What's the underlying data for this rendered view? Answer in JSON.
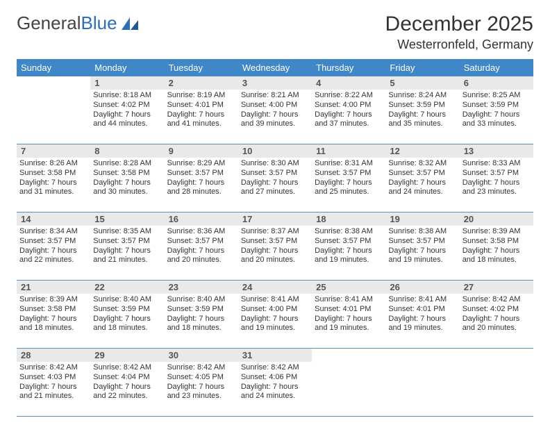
{
  "logo": {
    "text1": "General",
    "text2": "Blue"
  },
  "title": "December 2025",
  "location": "Westerronfeld, Germany",
  "colors": {
    "header_bg": "#3f87c7",
    "header_text": "#ffffff",
    "daylabel_bg": "#e9e9e9",
    "row_border": "#5b8fc2",
    "logo_gray": "#444444",
    "logo_blue": "#2d6fb6"
  },
  "weekdays": [
    "Sunday",
    "Monday",
    "Tuesday",
    "Wednesday",
    "Thursday",
    "Friday",
    "Saturday"
  ],
  "weeks": [
    [
      null,
      {
        "n": "1",
        "sr": "Sunrise: 8:18 AM",
        "ss": "Sunset: 4:02 PM",
        "d1": "Daylight: 7 hours",
        "d2": "and 44 minutes."
      },
      {
        "n": "2",
        "sr": "Sunrise: 8:19 AM",
        "ss": "Sunset: 4:01 PM",
        "d1": "Daylight: 7 hours",
        "d2": "and 41 minutes."
      },
      {
        "n": "3",
        "sr": "Sunrise: 8:21 AM",
        "ss": "Sunset: 4:00 PM",
        "d1": "Daylight: 7 hours",
        "d2": "and 39 minutes."
      },
      {
        "n": "4",
        "sr": "Sunrise: 8:22 AM",
        "ss": "Sunset: 4:00 PM",
        "d1": "Daylight: 7 hours",
        "d2": "and 37 minutes."
      },
      {
        "n": "5",
        "sr": "Sunrise: 8:24 AM",
        "ss": "Sunset: 3:59 PM",
        "d1": "Daylight: 7 hours",
        "d2": "and 35 minutes."
      },
      {
        "n": "6",
        "sr": "Sunrise: 8:25 AM",
        "ss": "Sunset: 3:59 PM",
        "d1": "Daylight: 7 hours",
        "d2": "and 33 minutes."
      }
    ],
    [
      {
        "n": "7",
        "sr": "Sunrise: 8:26 AM",
        "ss": "Sunset: 3:58 PM",
        "d1": "Daylight: 7 hours",
        "d2": "and 31 minutes."
      },
      {
        "n": "8",
        "sr": "Sunrise: 8:28 AM",
        "ss": "Sunset: 3:58 PM",
        "d1": "Daylight: 7 hours",
        "d2": "and 30 minutes."
      },
      {
        "n": "9",
        "sr": "Sunrise: 8:29 AM",
        "ss": "Sunset: 3:57 PM",
        "d1": "Daylight: 7 hours",
        "d2": "and 28 minutes."
      },
      {
        "n": "10",
        "sr": "Sunrise: 8:30 AM",
        "ss": "Sunset: 3:57 PM",
        "d1": "Daylight: 7 hours",
        "d2": "and 27 minutes."
      },
      {
        "n": "11",
        "sr": "Sunrise: 8:31 AM",
        "ss": "Sunset: 3:57 PM",
        "d1": "Daylight: 7 hours",
        "d2": "and 25 minutes."
      },
      {
        "n": "12",
        "sr": "Sunrise: 8:32 AM",
        "ss": "Sunset: 3:57 PM",
        "d1": "Daylight: 7 hours",
        "d2": "and 24 minutes."
      },
      {
        "n": "13",
        "sr": "Sunrise: 8:33 AM",
        "ss": "Sunset: 3:57 PM",
        "d1": "Daylight: 7 hours",
        "d2": "and 23 minutes."
      }
    ],
    [
      {
        "n": "14",
        "sr": "Sunrise: 8:34 AM",
        "ss": "Sunset: 3:57 PM",
        "d1": "Daylight: 7 hours",
        "d2": "and 22 minutes."
      },
      {
        "n": "15",
        "sr": "Sunrise: 8:35 AM",
        "ss": "Sunset: 3:57 PM",
        "d1": "Daylight: 7 hours",
        "d2": "and 21 minutes."
      },
      {
        "n": "16",
        "sr": "Sunrise: 8:36 AM",
        "ss": "Sunset: 3:57 PM",
        "d1": "Daylight: 7 hours",
        "d2": "and 20 minutes."
      },
      {
        "n": "17",
        "sr": "Sunrise: 8:37 AM",
        "ss": "Sunset: 3:57 PM",
        "d1": "Daylight: 7 hours",
        "d2": "and 20 minutes."
      },
      {
        "n": "18",
        "sr": "Sunrise: 8:38 AM",
        "ss": "Sunset: 3:57 PM",
        "d1": "Daylight: 7 hours",
        "d2": "and 19 minutes."
      },
      {
        "n": "19",
        "sr": "Sunrise: 8:38 AM",
        "ss": "Sunset: 3:57 PM",
        "d1": "Daylight: 7 hours",
        "d2": "and 19 minutes."
      },
      {
        "n": "20",
        "sr": "Sunrise: 8:39 AM",
        "ss": "Sunset: 3:58 PM",
        "d1": "Daylight: 7 hours",
        "d2": "and 18 minutes."
      }
    ],
    [
      {
        "n": "21",
        "sr": "Sunrise: 8:39 AM",
        "ss": "Sunset: 3:58 PM",
        "d1": "Daylight: 7 hours",
        "d2": "and 18 minutes."
      },
      {
        "n": "22",
        "sr": "Sunrise: 8:40 AM",
        "ss": "Sunset: 3:59 PM",
        "d1": "Daylight: 7 hours",
        "d2": "and 18 minutes."
      },
      {
        "n": "23",
        "sr": "Sunrise: 8:40 AM",
        "ss": "Sunset: 3:59 PM",
        "d1": "Daylight: 7 hours",
        "d2": "and 18 minutes."
      },
      {
        "n": "24",
        "sr": "Sunrise: 8:41 AM",
        "ss": "Sunset: 4:00 PM",
        "d1": "Daylight: 7 hours",
        "d2": "and 19 minutes."
      },
      {
        "n": "25",
        "sr": "Sunrise: 8:41 AM",
        "ss": "Sunset: 4:01 PM",
        "d1": "Daylight: 7 hours",
        "d2": "and 19 minutes."
      },
      {
        "n": "26",
        "sr": "Sunrise: 8:41 AM",
        "ss": "Sunset: 4:01 PM",
        "d1": "Daylight: 7 hours",
        "d2": "and 19 minutes."
      },
      {
        "n": "27",
        "sr": "Sunrise: 8:42 AM",
        "ss": "Sunset: 4:02 PM",
        "d1": "Daylight: 7 hours",
        "d2": "and 20 minutes."
      }
    ],
    [
      {
        "n": "28",
        "sr": "Sunrise: 8:42 AM",
        "ss": "Sunset: 4:03 PM",
        "d1": "Daylight: 7 hours",
        "d2": "and 21 minutes."
      },
      {
        "n": "29",
        "sr": "Sunrise: 8:42 AM",
        "ss": "Sunset: 4:04 PM",
        "d1": "Daylight: 7 hours",
        "d2": "and 22 minutes."
      },
      {
        "n": "30",
        "sr": "Sunrise: 8:42 AM",
        "ss": "Sunset: 4:05 PM",
        "d1": "Daylight: 7 hours",
        "d2": "and 23 minutes."
      },
      {
        "n": "31",
        "sr": "Sunrise: 8:42 AM",
        "ss": "Sunset: 4:06 PM",
        "d1": "Daylight: 7 hours",
        "d2": "and 24 minutes."
      },
      null,
      null,
      null
    ]
  ]
}
